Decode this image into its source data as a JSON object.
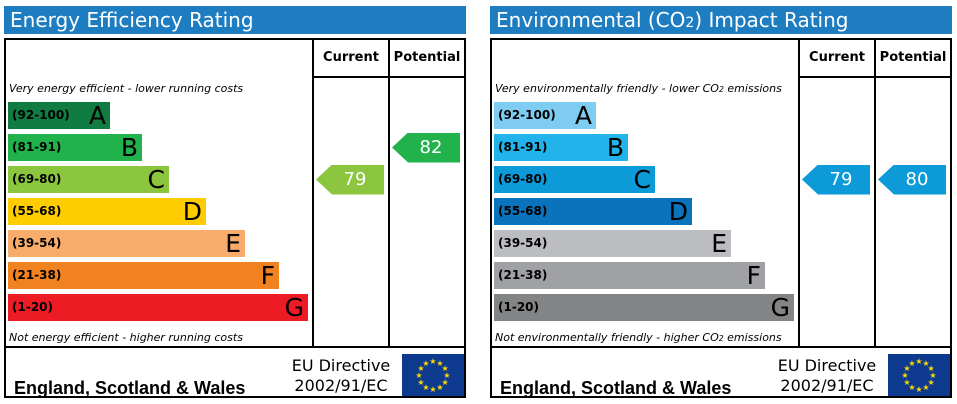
{
  "colors": {
    "title_bar": "#1e7dc1",
    "eu_flag_blue": "#0d3a8e",
    "eu_flag_stars": "#ffd800"
  },
  "chart_data": [
    {
      "type": "bar",
      "title": "Energy Efficiency Rating",
      "column_headers": [
        "Current",
        "Potential"
      ],
      "top_caption": "Very energy efficient - lower running costs",
      "bottom_caption": "Not energy efficient - higher running costs",
      "bands": [
        {
          "range": "(92-100)",
          "letter": "A",
          "color": "#107c41",
          "min": 92,
          "max": 100
        },
        {
          "range": "(81-91)",
          "letter": "B",
          "color": "#22b24c",
          "min": 81,
          "max": 91
        },
        {
          "range": "(69-80)",
          "letter": "C",
          "color": "#8cc63f",
          "min": 69,
          "max": 80
        },
        {
          "range": "(55-68)",
          "letter": "D",
          "color": "#ffcc00",
          "min": 55,
          "max": 68
        },
        {
          "range": "(39-54)",
          "letter": "E",
          "color": "#f7ac6b",
          "min": 39,
          "max": 54
        },
        {
          "range": "(21-38)",
          "letter": "F",
          "color": "#f0821f",
          "min": 21,
          "max": 38
        },
        {
          "range": "(1-20)",
          "letter": "G",
          "color": "#ed1c24",
          "min": 1,
          "max": 20
        }
      ],
      "current": {
        "value": 79,
        "color": "#8cc63f"
      },
      "potential": {
        "value": 82,
        "color": "#22b24c"
      },
      "footer_region": "England, Scotland & Wales",
      "directive_line1": "EU Directive",
      "directive_line2": "2002/91/EC"
    },
    {
      "type": "bar",
      "title": "Environmental (CO2) Impact Rating",
      "column_headers": [
        "Current",
        "Potential"
      ],
      "top_caption": "Very environmentally friendly - lower CO2 emissions",
      "bottom_caption": "Not environmentally friendly - higher CO2 emissions",
      "bands": [
        {
          "range": "(92-100)",
          "letter": "A",
          "color": "#7fccf2",
          "min": 92,
          "max": 100
        },
        {
          "range": "(81-91)",
          "letter": "B",
          "color": "#21b3ea",
          "min": 81,
          "max": 91
        },
        {
          "range": "(69-80)",
          "letter": "C",
          "color": "#0c9ad9",
          "min": 69,
          "max": 80
        },
        {
          "range": "(55-68)",
          "letter": "D",
          "color": "#0b73bb",
          "min": 55,
          "max": 68
        },
        {
          "range": "(39-54)",
          "letter": "E",
          "color": "#bcbdc0",
          "min": 39,
          "max": 54
        },
        {
          "range": "(21-38)",
          "letter": "F",
          "color": "#a0a1a4",
          "min": 21,
          "max": 38
        },
        {
          "range": "(1-20)",
          "letter": "G",
          "color": "#838486",
          "min": 1,
          "max": 20
        }
      ],
      "current": {
        "value": 79,
        "color": "#0c9ad9"
      },
      "potential": {
        "value": 80,
        "color": "#0c9ad9"
      },
      "footer_region": "England, Scotland & Wales",
      "directive_line1": "EU Directive",
      "directive_line2": "2002/91/EC"
    }
  ]
}
